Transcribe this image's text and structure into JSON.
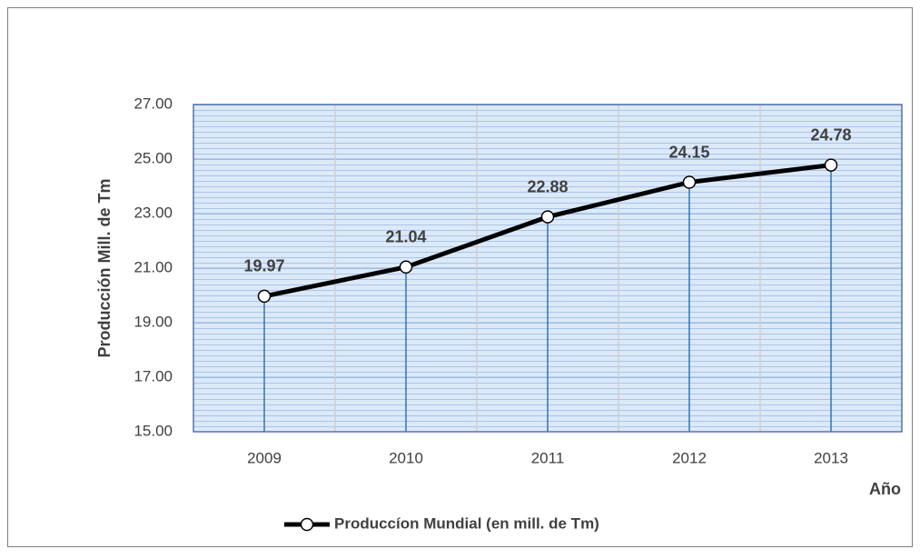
{
  "chart_data": {
    "type": "line",
    "categories": [
      "2009",
      "2010",
      "2011",
      "2012",
      "2013"
    ],
    "series": [
      {
        "name": "Produccíon Mundial (en mill. de Tm)",
        "color": "#000000",
        "values": [
          19.97,
          21.04,
          22.88,
          24.15,
          24.78
        ]
      }
    ],
    "y_label": "Producción Mill. de Tm",
    "x_label": "Año",
    "ylim": [
      15,
      27
    ],
    "yticks": [
      {
        "value": 15,
        "label": "15.00"
      },
      {
        "value": 17,
        "label": "17.00"
      },
      {
        "value": 19,
        "label": "19.00"
      },
      {
        "value": 21,
        "label": "21.00"
      },
      {
        "value": 23,
        "label": "23.00"
      },
      {
        "value": 25,
        "label": "25.00"
      },
      {
        "value": 27,
        "label": "27.00"
      }
    ],
    "grid": true,
    "legend": "bottom"
  }
}
